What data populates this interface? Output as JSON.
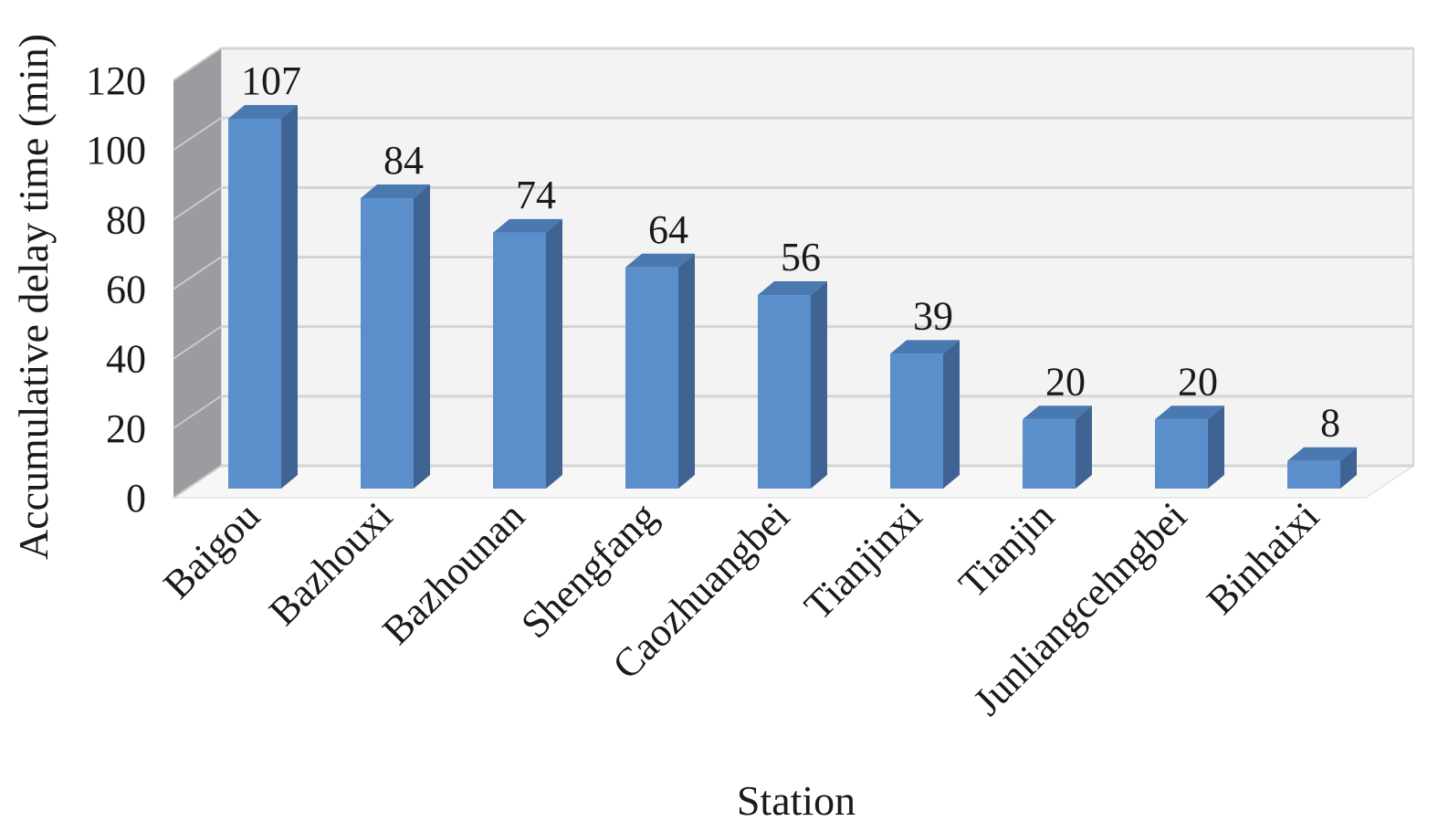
{
  "chart_data": {
    "type": "bar",
    "style": "3d-column",
    "categories": [
      "Baigou",
      "Bazhouxi",
      "Bazhounan",
      "Shengfang",
      "Caozhuangbei",
      "Tianjinxi",
      "Tianjin",
      "Junliangcehngbei",
      "Binhaixi"
    ],
    "values": [
      107,
      84,
      74,
      64,
      56,
      39,
      20,
      20,
      8
    ],
    "data_labels": [
      "107",
      "84",
      "74",
      "64",
      "56",
      "39",
      "20",
      "20",
      "8"
    ],
    "xlabel": "Station",
    "ylabel": "Accumulative delay time (min)",
    "ylim": [
      0,
      120
    ],
    "yticks": [
      "0",
      "20",
      "40",
      "60",
      "80",
      "100",
      "120"
    ],
    "grid": true,
    "legend": "none",
    "colors": {
      "bar_front": "#5b8fcb",
      "bar_side": "#3f6494",
      "bar_top": "#4a78b0",
      "back_wall": "#f3f3f3",
      "side_wall": "#9c9ca0",
      "gridline": "#d4d4d4"
    }
  }
}
